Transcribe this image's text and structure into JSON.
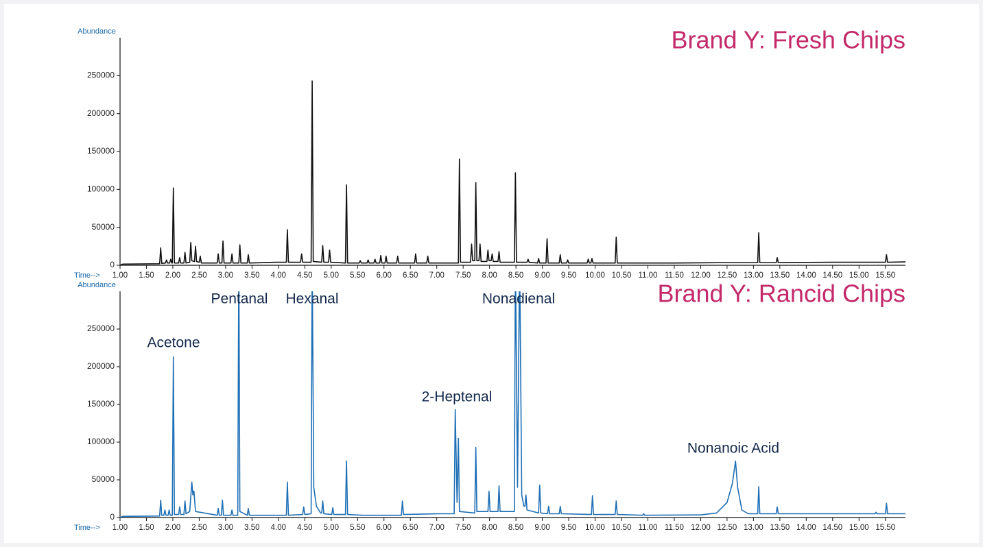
{
  "chart_data": [
    {
      "type": "line",
      "title": "Brand Y: Fresh Chips",
      "x_label": "Time-->",
      "y_label": "Abundance",
      "color": "#111111",
      "xlim": [
        1,
        15.88
      ],
      "ylim": [
        0,
        300000
      ],
      "yticks": [
        0,
        50000,
        100000,
        150000,
        200000,
        250000
      ],
      "xticks": [
        {
          "value": 1,
          "label": "1.00"
        },
        {
          "value": 1.5,
          "label": "1.50"
        },
        {
          "value": 2,
          "label": "2.00"
        },
        {
          "value": 2.5,
          "label": "2.50"
        },
        {
          "value": 3,
          "label": "3.00"
        },
        {
          "value": 3.5,
          "label": "3.50"
        },
        {
          "value": 4,
          "label": "4.00"
        },
        {
          "value": 4.5,
          "label": "4.50"
        },
        {
          "value": 5,
          "label": "5.00"
        },
        {
          "value": 5.5,
          "label": "5.50"
        },
        {
          "value": 6,
          "label": "6.00"
        },
        {
          "value": 6.5,
          "label": "6.50"
        },
        {
          "value": 7,
          "label": "7.00"
        },
        {
          "value": 7.5,
          "label": "7.50"
        },
        {
          "value": 8,
          "label": "8.00"
        },
        {
          "value": 8.5,
          "label": "8.50"
        },
        {
          "value": 9,
          "label": "9.00"
        },
        {
          "value": 9.5,
          "label": "9.50"
        },
        {
          "value": 10,
          "label": "10.00"
        },
        {
          "value": 10.5,
          "label": "10.50"
        },
        {
          "value": 11,
          "label": "11.00"
        },
        {
          "value": 11.5,
          "label": "11.50"
        },
        {
          "value": 12,
          "label": "12.00"
        },
        {
          "value": 12.5,
          "label": "12.50"
        },
        {
          "value": 13,
          "label": "13.00"
        },
        {
          "value": 13.5,
          "label": "13.50"
        },
        {
          "value": 14,
          "label": "14.00"
        },
        {
          "value": 14.5,
          "label": "14.50"
        },
        {
          "value": 15,
          "label": "15.00"
        },
        {
          "value": 15.5,
          "label": "15.50"
        }
      ],
      "x": [
        1.0,
        1.05,
        1.75,
        1.77,
        1.79,
        1.86,
        1.88,
        1.9,
        1.94,
        1.96,
        1.98,
        1.99,
        2.01,
        2.03,
        2.11,
        2.13,
        2.15,
        2.21,
        2.23,
        2.25,
        2.32,
        2.34,
        2.36,
        2.41,
        2.43,
        2.45,
        2.5,
        2.52,
        2.54,
        2.84,
        2.86,
        2.88,
        2.93,
        2.95,
        2.97,
        3.1,
        3.12,
        3.14,
        3.25,
        3.27,
        3.29,
        3.41,
        3.43,
        3.45,
        3.95,
        4.15,
        4.17,
        4.19,
        4.42,
        4.44,
        4.46,
        4.62,
        4.64,
        4.66,
        4.82,
        4.84,
        4.86,
        4.95,
        4.97,
        4.99,
        5.27,
        5.29,
        5.31,
        5.53,
        5.55,
        5.57,
        5.68,
        5.7,
        5.72,
        5.81,
        5.83,
        5.85,
        5.92,
        5.94,
        5.96,
        6.02,
        6.04,
        6.06,
        6.24,
        6.26,
        6.28,
        6.58,
        6.6,
        6.62,
        6.81,
        6.83,
        6.85,
        7.41,
        7.43,
        7.45,
        7.64,
        7.66,
        7.68,
        7.72,
        7.74,
        7.76,
        7.8,
        7.82,
        7.84,
        7.95,
        7.97,
        7.99,
        8.03,
        8.05,
        8.07,
        8.16,
        8.18,
        8.2,
        8.47,
        8.49,
        8.51,
        8.71,
        8.73,
        8.75,
        8.91,
        8.93,
        8.95,
        9.07,
        9.09,
        9.11,
        9.32,
        9.34,
        9.36,
        9.46,
        9.48,
        9.5,
        9.85,
        9.87,
        9.89,
        9.92,
        9.94,
        9.96,
        10.38,
        10.4,
        10.42,
        11.5,
        12.5,
        13.08,
        13.1,
        13.12,
        13.43,
        13.45,
        13.47,
        14.5,
        15.5,
        15.52,
        15.54,
        15.88
      ],
      "values": [
        0,
        1500,
        2000,
        23000,
        2500,
        3000,
        7000,
        3000,
        3000,
        8000,
        3000,
        3000,
        102000,
        3000,
        3000,
        10000,
        3000,
        3000,
        17000,
        3000,
        4000,
        30000,
        6000,
        5000,
        25000,
        5000,
        4000,
        12000,
        3000,
        3000,
        15000,
        3000,
        3000,
        32000,
        3000,
        3000,
        15000,
        3000,
        3000,
        27000,
        3000,
        3000,
        14000,
        3000,
        4000,
        4000,
        47000,
        4000,
        4000,
        15000,
        4000,
        4000,
        243000,
        5000,
        4000,
        26000,
        4000,
        4000,
        20000,
        4000,
        3000,
        106000,
        3000,
        3000,
        6000,
        3000,
        3000,
        7000,
        3000,
        3000,
        8000,
        3000,
        3000,
        13000,
        3000,
        3000,
        12000,
        3000,
        3000,
        12000,
        3000,
        3000,
        15000,
        3000,
        3000,
        12000,
        3000,
        3000,
        140000,
        4000,
        4000,
        28000,
        6000,
        6000,
        109000,
        6000,
        6000,
        28000,
        5000,
        5000,
        20000,
        6000,
        6000,
        15000,
        5000,
        5000,
        18000,
        4000,
        4000,
        122000,
        4000,
        4000,
        8000,
        4000,
        3000,
        9000,
        3000,
        3000,
        35000,
        3000,
        3000,
        14000,
        3000,
        3000,
        7000,
        3000,
        3000,
        8000,
        3000,
        3000,
        9000,
        3000,
        3000,
        37000,
        3000,
        3000,
        3500,
        3500,
        43000,
        3500,
        3500,
        10000,
        3500,
        4000,
        4000,
        14000,
        4000,
        4500
      ]
    },
    {
      "type": "line",
      "title": "Brand Y: Rancid Chips",
      "x_label": "Time-->",
      "y_label": "Abundance",
      "color": "#1f6fb5",
      "xlim": [
        1,
        15.88
      ],
      "ylim": [
        0,
        300000
      ],
      "yticks": [
        0,
        50000,
        100000,
        150000,
        200000,
        250000
      ],
      "xticks": [
        {
          "value": 1,
          "label": "1.00"
        },
        {
          "value": 1.5,
          "label": "1.50"
        },
        {
          "value": 2,
          "label": "2.00"
        },
        {
          "value": 2.5,
          "label": "2.50"
        },
        {
          "value": 3,
          "label": "3.00"
        },
        {
          "value": 3.5,
          "label": "3.50"
        },
        {
          "value": 4,
          "label": "4.00"
        },
        {
          "value": 4.5,
          "label": "4.50"
        },
        {
          "value": 5,
          "label": "5.00"
        },
        {
          "value": 5.5,
          "label": "5.50"
        },
        {
          "value": 6,
          "label": "6.00"
        },
        {
          "value": 6.5,
          "label": "6.50"
        },
        {
          "value": 7,
          "label": "7.00"
        },
        {
          "value": 7.5,
          "label": "7.50"
        },
        {
          "value": 8,
          "label": "8.00"
        },
        {
          "value": 8.5,
          "label": "8.50"
        },
        {
          "value": 9,
          "label": "9.00"
        },
        {
          "value": 9.5,
          "label": "9.50"
        },
        {
          "value": 10,
          "label": "10.00"
        },
        {
          "value": 10.5,
          "label": "10.50"
        },
        {
          "value": 11,
          "label": "11.00"
        },
        {
          "value": 11.5,
          "label": "11.50"
        },
        {
          "value": 12,
          "label": "12.00"
        },
        {
          "value": 12.5,
          "label": "12.50"
        },
        {
          "value": 13,
          "label": "13.00"
        },
        {
          "value": 13.5,
          "label": "13.50"
        },
        {
          "value": 14,
          "label": "14.00"
        },
        {
          "value": 14.5,
          "label": "14.50"
        },
        {
          "value": 15,
          "label": "15.00"
        },
        {
          "value": 15.5,
          "label": "15.50"
        }
      ],
      "annotations": [
        "Acetone",
        "Pentanal",
        "Hexanal",
        "2-Heptenal",
        "Nonadienal",
        "Nonanoic Acid"
      ],
      "x": [
        1.0,
        1.05,
        1.75,
        1.77,
        1.79,
        1.83,
        1.85,
        1.87,
        1.91,
        1.93,
        1.95,
        1.99,
        2.01,
        2.03,
        2.11,
        2.13,
        2.15,
        2.21,
        2.23,
        2.25,
        2.32,
        2.36,
        2.38,
        2.4,
        2.43,
        2.84,
        2.86,
        2.88,
        2.92,
        2.94,
        2.96,
        3.1,
        3.12,
        3.14,
        3.23,
        3.25,
        3.27,
        3.41,
        3.43,
        3.45,
        4.15,
        4.17,
        4.19,
        4.46,
        4.48,
        4.5,
        4.62,
        4.64,
        4.67,
        4.72,
        4.8,
        4.82,
        4.84,
        4.86,
        5.01,
        5.03,
        5.05,
        5.27,
        5.29,
        5.31,
        5.6,
        6.33,
        6.35,
        6.37,
        7.0,
        7.33,
        7.35,
        7.385,
        7.41,
        7.43,
        7.72,
        7.74,
        7.76,
        7.97,
        7.99,
        8.01,
        8.16,
        8.18,
        8.2,
        8.47,
        8.49,
        8.53,
        8.57,
        8.61,
        8.65,
        8.67,
        8.69,
        8.71,
        8.93,
        8.95,
        8.97,
        9.1,
        9.12,
        9.14,
        9.32,
        9.34,
        9.36,
        9.93,
        9.95,
        9.97,
        10.38,
        10.4,
        10.42,
        10.9,
        10.92,
        10.94,
        12.0,
        12.3,
        12.5,
        12.6,
        12.66,
        12.7,
        12.78,
        12.9,
        13.08,
        13.1,
        13.12,
        13.43,
        13.45,
        13.47,
        15.0,
        15.3,
        15.32,
        15.34,
        15.5,
        15.52,
        15.54,
        15.88
      ],
      "values": [
        0,
        1500,
        2000,
        23000,
        3000,
        3000,
        10000,
        3000,
        3000,
        10000,
        3000,
        3000,
        213000,
        4000,
        4000,
        14000,
        4000,
        4000,
        22000,
        5000,
        8000,
        47000,
        30000,
        35000,
        8000,
        3000,
        12000,
        3000,
        3000,
        23000,
        3000,
        3000,
        10000,
        3000,
        3000,
        350000,
        8000,
        3000,
        12000,
        3000,
        3000,
        47000,
        3000,
        4000,
        14000,
        4000,
        5000,
        350000,
        40000,
        15000,
        6000,
        6000,
        22000,
        5000,
        4000,
        13000,
        4000,
        4000,
        75000,
        4000,
        3000,
        3000,
        22000,
        4000,
        5000,
        5000,
        143000,
        20000,
        105000,
        8000,
        6000,
        93000,
        8000,
        8000,
        35000,
        8000,
        8000,
        42000,
        8000,
        8000,
        350000,
        40000,
        350000,
        30000,
        15000,
        15000,
        30000,
        10000,
        6000,
        43000,
        6000,
        5000,
        15000,
        5000,
        5000,
        15000,
        5000,
        4000,
        29000,
        4000,
        4000,
        22000,
        4000,
        3000,
        5000,
        3000,
        3500,
        6000,
        20000,
        45000,
        75000,
        40000,
        10000,
        5000,
        5000,
        41000,
        5000,
        5000,
        14000,
        5000,
        5000,
        5000,
        7000,
        5000,
        5000,
        19000,
        5000,
        5000
      ]
    }
  ]
}
